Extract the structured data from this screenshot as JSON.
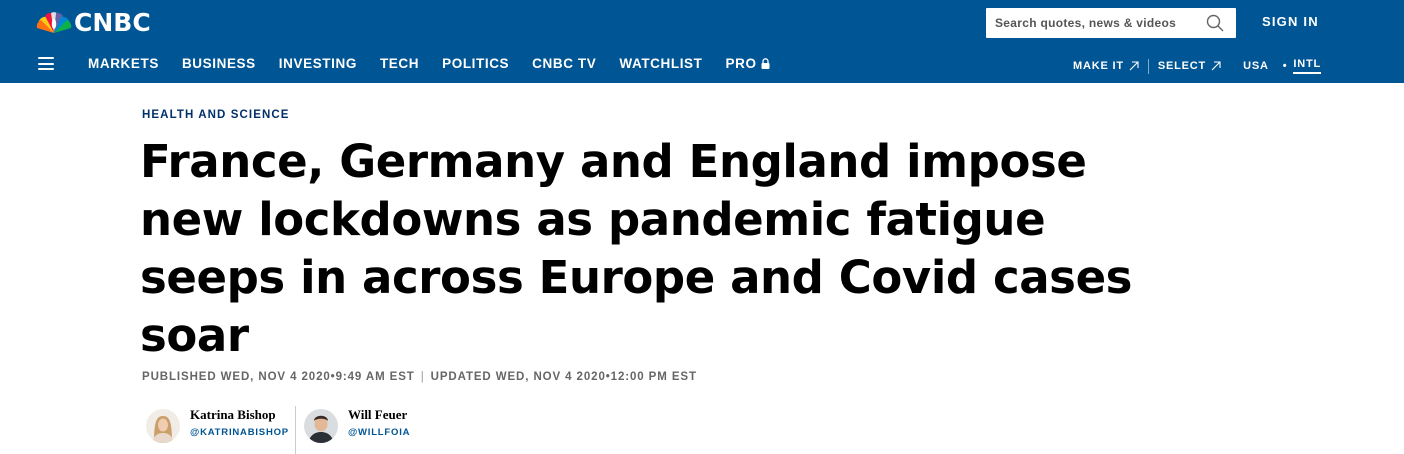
{
  "header": {
    "logo_text": "CNBC",
    "search_placeholder": "Search quotes, news & videos",
    "sign_in": "SIGN IN",
    "nav": [
      {
        "label": "MARKETS"
      },
      {
        "label": "BUSINESS"
      },
      {
        "label": "INVESTING"
      },
      {
        "label": "TECH"
      },
      {
        "label": "POLITICS"
      },
      {
        "label": "CNBC TV"
      },
      {
        "label": "WATCHLIST"
      },
      {
        "label": "PRO"
      }
    ],
    "right_nav": {
      "make_it": "MAKE IT",
      "select": "SELECT",
      "usa": "USA",
      "intl": "INTL"
    }
  },
  "article": {
    "kicker": "HEALTH AND SCIENCE",
    "headline": "France, Germany and England impose new lockdowns as pandemic fatigue seeps in across Europe and Covid cases soar",
    "published": "PUBLISHED WED, NOV 4 2020•9:49 AM EST",
    "updated": "UPDATED WED, NOV 4 2020•12:00 PM EST",
    "authors": [
      {
        "name": "Katrina Bishop",
        "handle": "@KATRINABISHOP"
      },
      {
        "name": "Will Feuer",
        "handle": "@WILLFOIA"
      }
    ]
  },
  "colors": {
    "brand_blue": "#005594",
    "kicker_navy": "#002f6c",
    "meta_gray": "#666666"
  }
}
